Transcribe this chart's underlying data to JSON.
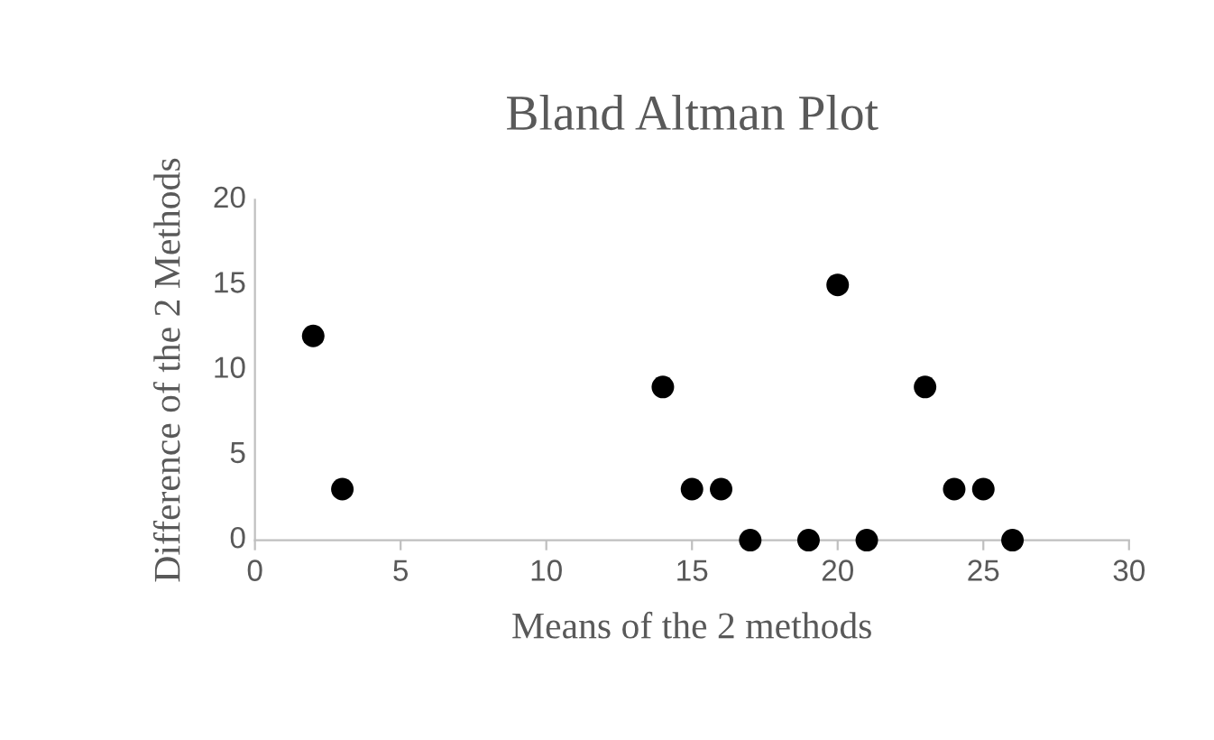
{
  "chart_data": {
    "type": "scatter",
    "title": "Bland Altman Plot",
    "xlabel": "Means of the 2 methods",
    "ylabel": "Difference of the 2 Methods",
    "x": [
      2,
      3,
      14,
      15,
      16,
      17,
      19,
      20,
      21,
      23,
      24,
      25,
      26
    ],
    "series": [
      {
        "color": "#000000",
        "values": [
          12,
          3,
          9,
          3,
          3,
          0,
          0,
          15,
          0,
          9,
          3,
          3,
          0
        ]
      }
    ],
    "xlim": [
      0,
      30
    ],
    "xticks": [
      0,
      5,
      10,
      15,
      20,
      25,
      30
    ],
    "ylim": [
      0,
      20
    ],
    "yticks": [
      0,
      5,
      10,
      15,
      20
    ],
    "grid": false,
    "legend": false,
    "marker": "circle"
  }
}
